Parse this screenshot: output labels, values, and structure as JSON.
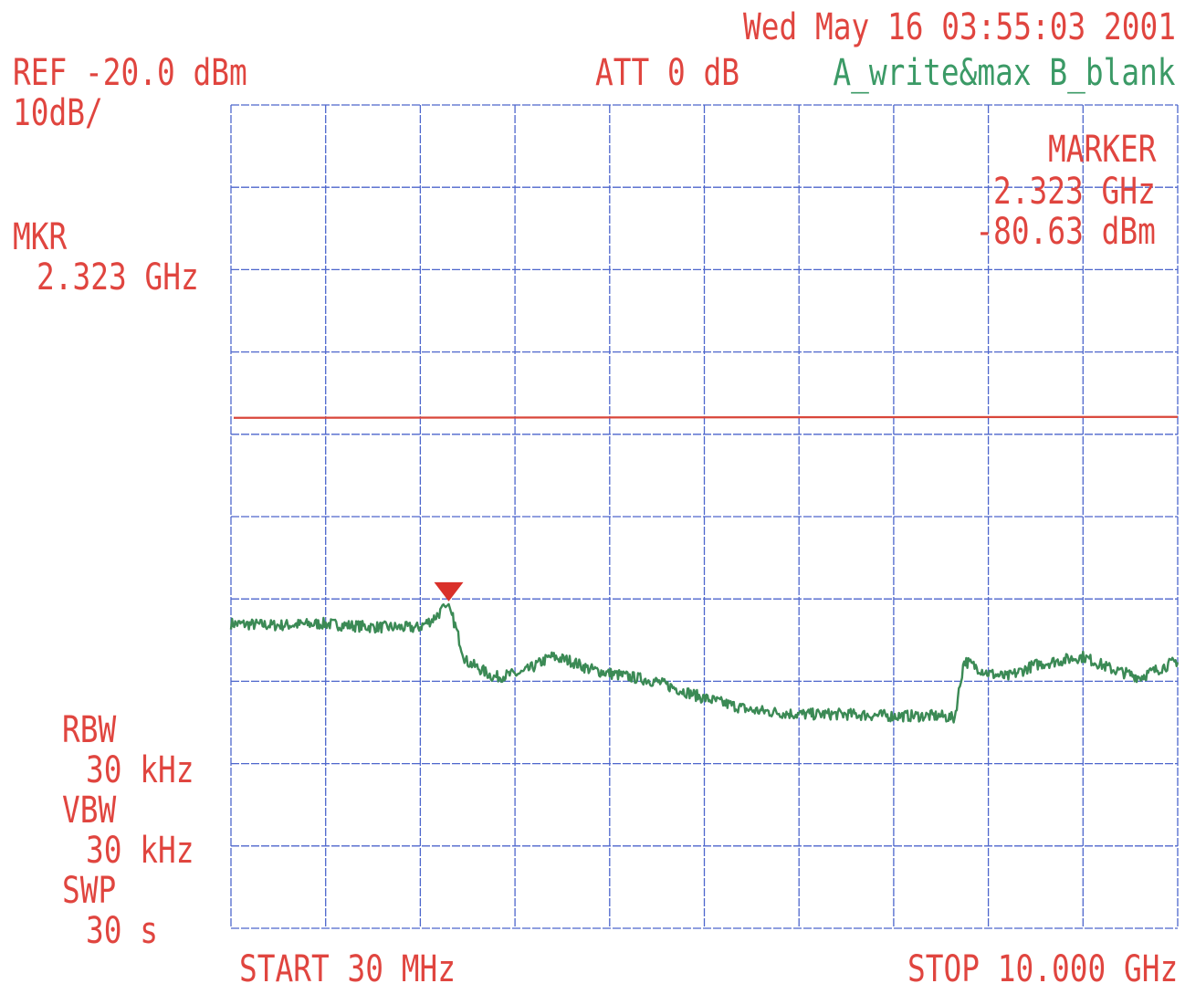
{
  "header": {
    "timestamp": "Wed May 16 03:55:03 2001",
    "ref_level": "REF -20.0 dBm",
    "scale": "10dB/",
    "attenuation": "ATT 0 dB",
    "trace_mode": "A_write&max B_blank"
  },
  "marker": {
    "title": "MARKER",
    "frequency": "2.323 GHz",
    "level": "-80.63 dBm",
    "mkr_label": "MKR",
    "mkr_frequency": "2.323 GHz"
  },
  "settings": {
    "rbw_label": "RBW",
    "rbw_value": "30 kHz",
    "vbw_label": "VBW",
    "vbw_value": "30 kHz",
    "swp_label": "SWP",
    "swp_value": "30 s"
  },
  "footer": {
    "start": "START 30 MHz",
    "stop": "STOP 10.000 GHz"
  },
  "colors": {
    "text": "#e0453f",
    "trace": "#3b8a55",
    "grid": "#4d66cc",
    "limit_line": "#d9463a",
    "marker": "#d9302a",
    "trace_mode_text": "#3b9a66"
  },
  "chart_data": {
    "type": "line",
    "xlim": [
      0.03,
      10.0
    ],
    "ylim": [
      -120,
      -20
    ],
    "grid": true,
    "x_divisions": 10,
    "y_divisions": 10,
    "limit_line_dbm": -58,
    "marker_point": {
      "x": 2.323,
      "y": -80.63
    },
    "series": [
      {
        "x": [
          0.03,
          0.5,
          1.0,
          1.5,
          2.0,
          2.15,
          2.323,
          2.5,
          2.8,
          3.1,
          3.4,
          3.6,
          3.8,
          4.0,
          4.5,
          5.0,
          5.5,
          6.0,
          6.5,
          7.0,
          7.5,
          7.65,
          7.75,
          8.0,
          8.2,
          8.5,
          9.0,
          9.3,
          9.6,
          10.0
        ],
        "y": [
          -83.0,
          -83.2,
          -83.0,
          -83.4,
          -83.5,
          -82.5,
          -80.63,
          -87.5,
          -89.5,
          -89.0,
          -87.0,
          -87.5,
          -88.5,
          -89.0,
          -90.0,
          -92.0,
          -93.5,
          -94.0,
          -94.0,
          -94.2,
          -94.2,
          -94.5,
          -87.5,
          -89.0,
          -89.5,
          -88.0,
          -87.0,
          -88.5,
          -89.5,
          -87.5
        ]
      }
    ]
  }
}
